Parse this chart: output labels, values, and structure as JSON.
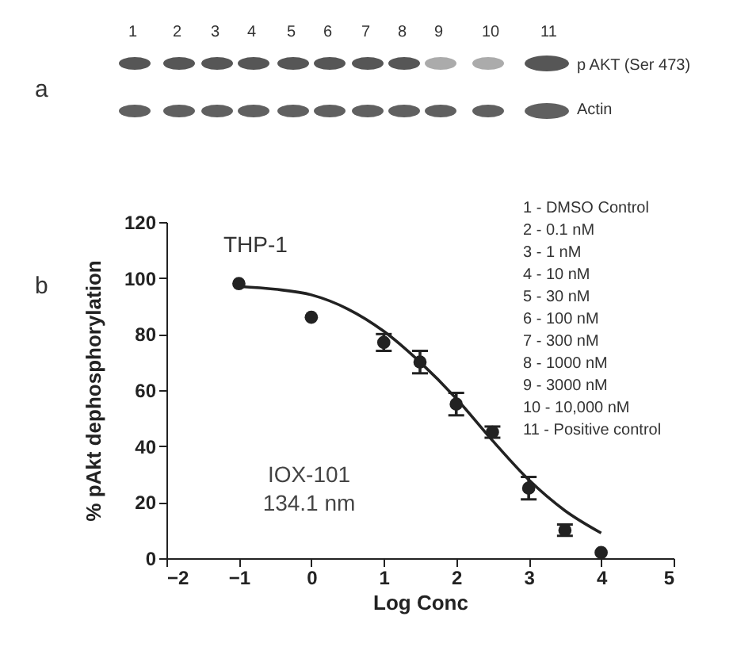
{
  "chart_data": {
    "type": "scatter",
    "title": "THP-1",
    "xlabel": "Log Conc",
    "ylabel": "% pAkt dephosphorylation",
    "x": [
      -1,
      0,
      1,
      1.5,
      2,
      2.5,
      3,
      3.5,
      4
    ],
    "series": [
      {
        "color": "#222222",
        "values": [
          98,
          86,
          77,
          70,
          55,
          45,
          25,
          10,
          2
        ],
        "errors": [
          null,
          null,
          3,
          4,
          4,
          2,
          4,
          2,
          null
        ]
      },
      {
        "type": "line",
        "marker": "none",
        "color": "#222222",
        "x": [
          -1,
          -0.5,
          0,
          0.5,
          1,
          1.5,
          2,
          2.5,
          3,
          3.5,
          4
        ],
        "values": [
          97,
          96,
          94,
          89,
          81,
          70,
          57,
          42,
          28,
          17,
          9
        ]
      }
    ],
    "xlim": [
      -2,
      5
    ],
    "xticks": [
      -2,
      -1,
      0,
      1,
      2,
      3,
      4,
      5
    ],
    "ylim": [
      0,
      120
    ],
    "yticks": [
      0,
      20,
      40,
      60,
      80,
      100,
      120
    ],
    "grid": false,
    "marker": "circle",
    "line_style": "solid",
    "annotations": [
      "a",
      "b",
      "1",
      "2",
      "3",
      "4",
      "5",
      "6",
      "7",
      "8",
      "9",
      "10",
      "11",
      "p AKT (Ser 473)",
      "Actin",
      "IOX-101",
      "134.1 nm",
      "1 - DMSO Control",
      "2 - 0.1 nM",
      "3 - 1 nM",
      "4 - 10 nM",
      "5 - 30 nM",
      "6 - 100 nM",
      "7 - 300 nM",
      "8 - 1000 nM",
      "9 - 3000 nM",
      "10 - 10,000 nM",
      "11 - Positive control"
    ]
  }
}
